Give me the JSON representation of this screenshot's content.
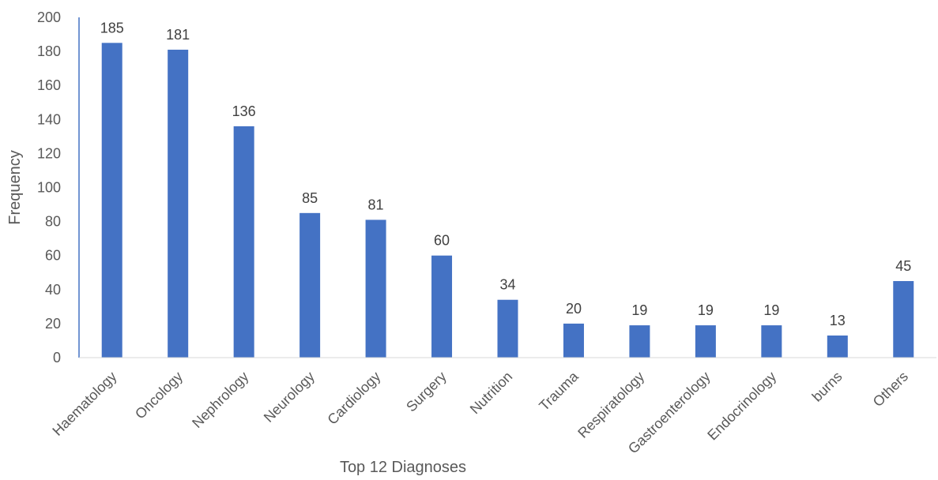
{
  "chart_data": {
    "type": "bar",
    "title": "",
    "xlabel": "Top 12 Diagnoses",
    "ylabel": "Frequency",
    "ylim": [
      0,
      200
    ],
    "ytick_step": 20,
    "yticks": [
      "0",
      "20",
      "40",
      "60",
      "80",
      "100",
      "120",
      "140",
      "160",
      "180",
      "200"
    ],
    "categories": [
      "Haematology",
      "Oncology",
      "Nephrology",
      "Neurology",
      "Cardiology",
      "Surgery",
      "Nutrition",
      "Trauma",
      "Respiratology",
      "Gastroenterology",
      "Endocrinology",
      "burns",
      "Others"
    ],
    "values": [
      185,
      181,
      136,
      85,
      81,
      60,
      34,
      20,
      19,
      19,
      19,
      13,
      45
    ],
    "data_labels": [
      "185",
      "181",
      "136",
      "85",
      "81",
      "60",
      "34",
      "20",
      "19",
      "19",
      "19",
      "13",
      "45"
    ],
    "grid": false,
    "legend": "none",
    "colors": {
      "bar": "#4472C4",
      "axis": "#4472C4",
      "baseline": "#D9D9D9"
    }
  }
}
